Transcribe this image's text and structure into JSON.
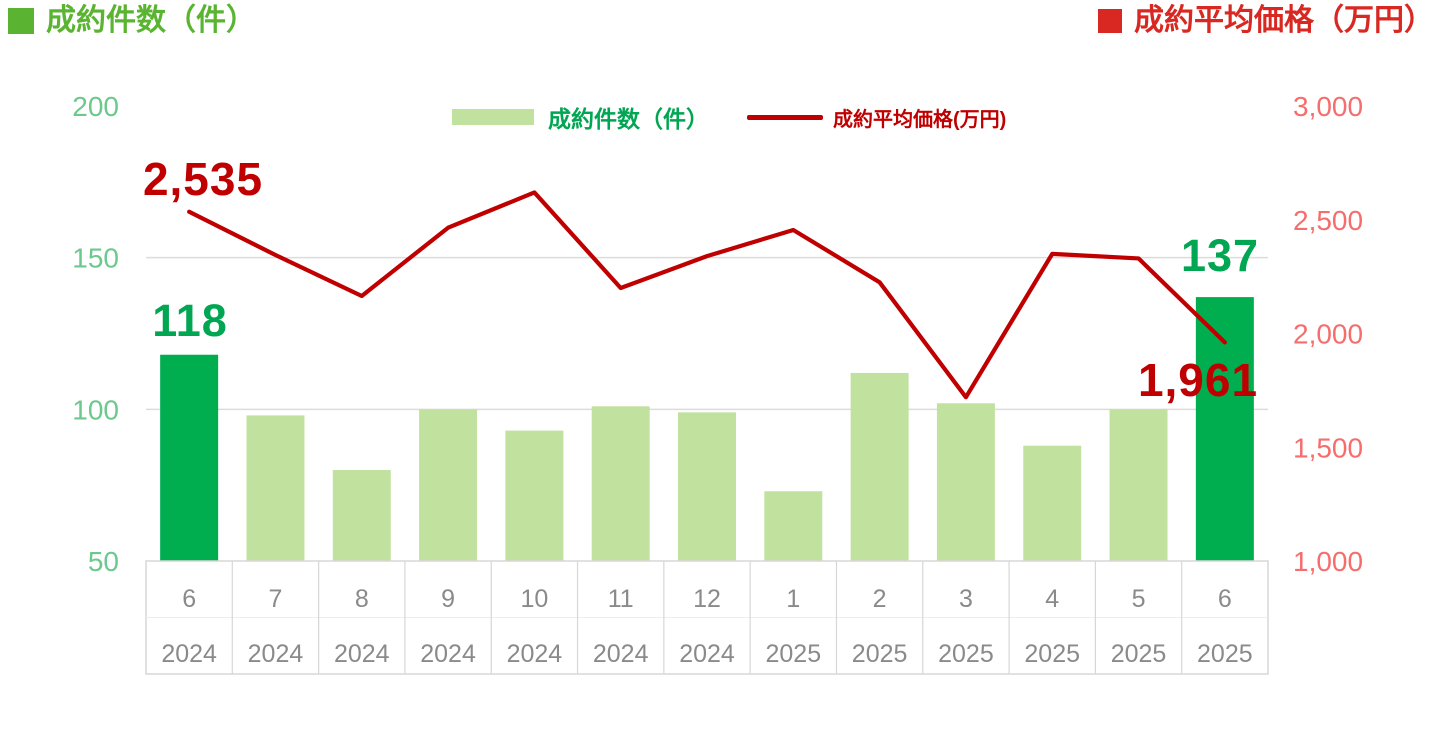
{
  "header": {
    "left_title": "成約件数（件）",
    "right_title": "成約平均価格（万円）"
  },
  "legend": {
    "bars_label": "成約件数（件）",
    "line_label": "成約平均価格(万円)"
  },
  "chart_data": {
    "type": "bar",
    "subtype": "combo bar + line, dual axis",
    "title": "成約件数（件）／成約平均価格（万円）",
    "legend_position": "top-center",
    "grid": "horizontal gridlines at left-axis 100 and 150 only",
    "categories": [
      {
        "month": "6",
        "year": "2024"
      },
      {
        "month": "7",
        "year": "2024"
      },
      {
        "month": "8",
        "year": "2024"
      },
      {
        "month": "9",
        "year": "2024"
      },
      {
        "month": "10",
        "year": "2024"
      },
      {
        "month": "11",
        "year": "2024"
      },
      {
        "month": "12",
        "year": "2024"
      },
      {
        "month": "1",
        "year": "2025"
      },
      {
        "month": "2",
        "year": "2025"
      },
      {
        "month": "3",
        "year": "2025"
      },
      {
        "month": "4",
        "year": "2025"
      },
      {
        "month": "5",
        "year": "2025"
      },
      {
        "month": "6",
        "year": "2025"
      }
    ],
    "series": [
      {
        "name": "成約件数（件）",
        "type": "bar",
        "axis": "left",
        "values": [
          118,
          98,
          80,
          100,
          93,
          101,
          99,
          73,
          112,
          102,
          88,
          100,
          137
        ],
        "highlight_indices": [
          0,
          12
        ]
      },
      {
        "name": "成約平均価格(万円)",
        "type": "line",
        "axis": "right",
        "values": [
          2535,
          2345,
          2165,
          2465,
          2620,
          2200,
          2340,
          2455,
          2225,
          1720,
          2350,
          2330,
          1961
        ]
      }
    ],
    "left_axis": {
      "label": "成約件数（件）",
      "range": [
        50,
        200
      ],
      "ticks": [
        200,
        150,
        100,
        50
      ],
      "grid_ticks": [
        150,
        100
      ]
    },
    "right_axis": {
      "label": "成約平均価格（万円）",
      "range": [
        1000,
        3000
      ],
      "ticks": [
        "3,000",
        "2,500",
        "2,000",
        "1,500",
        "1,000"
      ]
    },
    "annotations": {
      "price_first": {
        "text": "2,535",
        "series": "line",
        "category": "6 2024"
      },
      "count_first": {
        "text": "118",
        "series": "bar",
        "category": "6 2024"
      },
      "count_last": {
        "text": "137",
        "series": "bar",
        "category": "6 2025"
      },
      "price_last": {
        "text": "1,961",
        "series": "line",
        "category": "6 2025"
      }
    }
  },
  "colors": {
    "bar_light": "#c1e29f",
    "bar_highlight": "#00ae50",
    "line": "#c00000",
    "left_title": "#5ab431",
    "right_title": "#d92721",
    "left_axis_ticks": "#6cc98d",
    "right_axis_ticks": "#f66d6d",
    "count_label": "#00a651",
    "price_label": "#c00000",
    "gridline": "#dcdcdc",
    "table_border": "#d8d6d6",
    "table_inner_border": "#eeeded",
    "table_text": "#8a8a8a"
  }
}
